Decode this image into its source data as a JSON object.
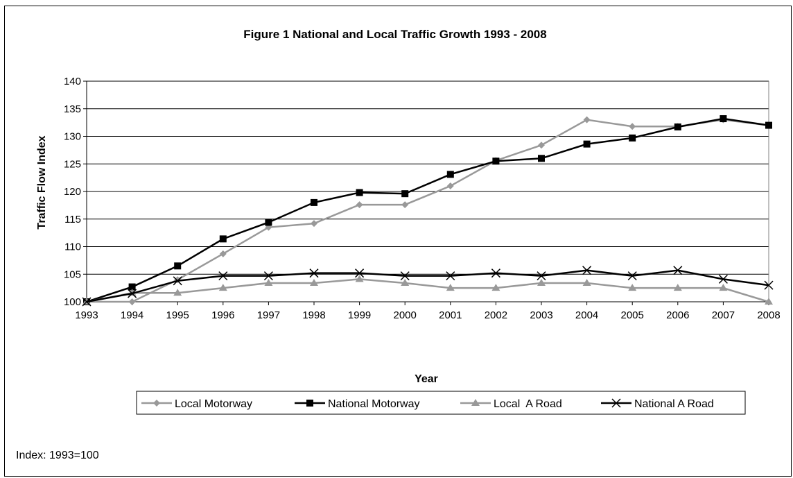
{
  "note": "Index: 1993=100",
  "chart_data": {
    "type": "line",
    "title": "Figure 1 National and Local Traffic Growth 1993 - 2008",
    "xlabel": "Year",
    "ylabel": "Traffic Flow Index",
    "ylim": [
      100,
      140
    ],
    "yticks": [
      100,
      105,
      110,
      115,
      120,
      125,
      130,
      135,
      140
    ],
    "grid": true,
    "legend": "bottom",
    "categories": [
      "1993",
      "1994",
      "1995",
      "1996",
      "1997",
      "1998",
      "1999",
      "2000",
      "2001",
      "2002",
      "2003",
      "2004",
      "2005",
      "2006",
      "2007",
      "2008"
    ],
    "series": [
      {
        "name": "Local Motorway",
        "color": "#999999",
        "marker": "diamond",
        "values": [
          100,
          100,
          104,
          108.7,
          113.5,
          114.2,
          117.6,
          117.6,
          121,
          125.6,
          128.4,
          133,
          131.8,
          131.8,
          133,
          132
        ]
      },
      {
        "name": "National Motorway",
        "color": "#000000",
        "marker": "square",
        "values": [
          100,
          102.7,
          106.5,
          111.4,
          114.4,
          118,
          119.8,
          119.6,
          123.1,
          125.5,
          126,
          128.6,
          129.7,
          131.7,
          133.2,
          132
        ]
      },
      {
        "name": "Local  A Road",
        "color": "#999999",
        "marker": "triangle",
        "values": [
          100,
          101.6,
          101.6,
          102.5,
          103.4,
          103.4,
          104.1,
          103.4,
          102.5,
          102.5,
          103.4,
          103.4,
          102.5,
          102.5,
          102.5,
          100
        ]
      },
      {
        "name": "National A Road",
        "color": "#000000",
        "marker": "x",
        "values": [
          100,
          101.5,
          103.8,
          104.7,
          104.7,
          105.2,
          105.2,
          104.7,
          104.7,
          105.2,
          104.7,
          105.7,
          104.7,
          105.7,
          104.1,
          103
        ]
      }
    ]
  }
}
